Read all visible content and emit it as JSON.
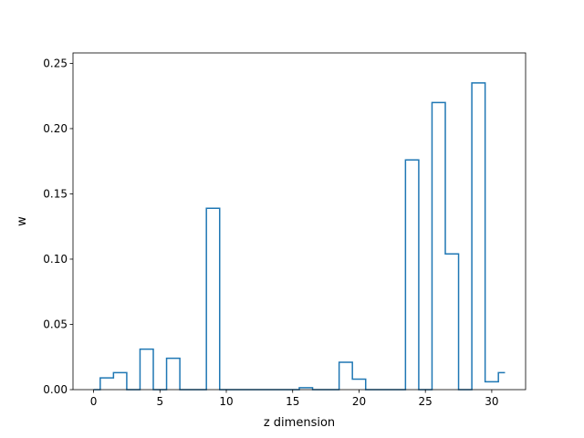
{
  "chart_data": {
    "type": "step",
    "title": "",
    "xlabel": "z dimension",
    "ylabel": "w",
    "xlim": [
      -1.55,
      32.55
    ],
    "ylim": [
      0.0,
      0.258
    ],
    "x_ticks": [
      0,
      5,
      10,
      15,
      20,
      25,
      30
    ],
    "y_ticks": [
      0.0,
      0.05,
      0.1,
      0.15,
      0.2,
      0.25
    ],
    "x_tick_labels": [
      "0",
      "5",
      "10",
      "15",
      "20",
      "25",
      "30"
    ],
    "y_tick_labels": [
      "0.00",
      "0.05",
      "0.10",
      "0.15",
      "0.20",
      "0.25"
    ],
    "grid": false,
    "step_where": "mid",
    "line_color": "#1f77b4",
    "series": [
      {
        "x": [
          0,
          1,
          2,
          3,
          4,
          5,
          6,
          7,
          8,
          9,
          10,
          11,
          12,
          13,
          14,
          15,
          16,
          17,
          18,
          19,
          20,
          21,
          22,
          23,
          24,
          25,
          26,
          27,
          28,
          29,
          30,
          31
        ],
        "values": [
          0.0,
          0.009,
          0.013,
          0.0,
          0.031,
          0.0,
          0.024,
          0.0,
          0.0,
          0.139,
          0.0,
          0.0,
          0.0,
          0.0,
          0.0,
          0.0,
          0.0015,
          0.0,
          0.0,
          0.021,
          0.008,
          0.0,
          0.0,
          0.0,
          0.176,
          0.0,
          0.22,
          0.104,
          0.0,
          0.235,
          0.006,
          0.013
        ]
      }
    ]
  }
}
